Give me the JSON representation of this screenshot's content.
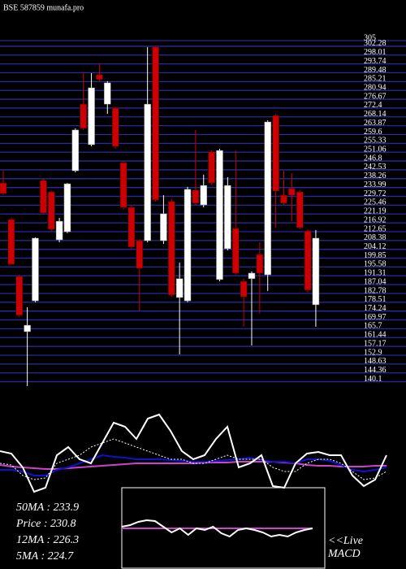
{
  "chart_data": [
    {
      "type": "candlestick",
      "title": "BSE 587859 munafa.pro",
      "ylim": [
        136,
        305
      ],
      "yticks": [
        305,
        302.28,
        298.01,
        293.74,
        289.48,
        285.21,
        280.94,
        276.67,
        272.4,
        268.14,
        263.87,
        259.6,
        255.33,
        251.06,
        246.8,
        242.53,
        238.26,
        233.99,
        229.72,
        225.46,
        221.19,
        216.92,
        212.65,
        208.38,
        204.12,
        199.85,
        195.58,
        191.31,
        187.04,
        182.78,
        178.51,
        174.24,
        169.97,
        165.7,
        161.44,
        157.17,
        152.9,
        148.63,
        144.36,
        140.1
      ],
      "grid": true,
      "grid_color": "#2a2aa0",
      "up_color": "#ffffff",
      "down_color": "#cc0000",
      "open": [
        236.2,
        218.5,
        191.0,
        164.3,
        179.2,
        237.4,
        231.9,
        208.7,
        212.6,
        242.1,
        274.3,
        254.7,
        288.5,
        274.3,
        272.4,
        246.0,
        224.4,
        208.3,
        208.3,
        301.9,
        208.3,
        227.2,
        180.8,
        179.2,
        232.7,
        225.6,
        251.2,
        189.5,
        204.4,
        214.2,
        188.6,
        189.9,
        201.6,
        191.8,
        268.8,
        230.3,
        233.5,
        231.9,
        213.0,
        177.3
      ],
      "high": [
        242.1,
        219.3,
        191.8,
        176.1,
        209.9,
        238.2,
        232.3,
        219.3,
        236.2,
        262.6,
        289.3,
        289.3,
        294.0,
        285.4,
        272.8,
        246.8,
        225.2,
        209.1,
        301.9,
        302.6,
        230.3,
        228.4,
        197.7,
        234.3,
        261.8,
        240.2,
        251.9,
        252.7,
        239.0,
        251.9,
        189.9,
        193.4,
        207.5,
        266.5,
        269.6,
        242.1,
        240.9,
        232.7,
        213.8,
        213.4
      ],
      "low": [
        230.3,
        196.9,
        171.4,
        138.0,
        178.5,
        220.9,
        213.0,
        207.5,
        211.9,
        241.3,
        261.8,
        253.9,
        285.4,
        269.6,
        252.7,
        223.3,
        204.4,
        174.5,
        207.5,
        227.2,
        206.7,
        181.2,
        153.3,
        178.5,
        225.6,
        224.4,
        235.4,
        188.6,
        203.6,
        191.8,
        166.7,
        157.6,
        173.0,
        184.0,
        214.6,
        225.6,
        217.7,
        213.8,
        183.2,
        166.7
      ],
      "close": [
        231.1,
        196.9,
        172.2,
        167.4,
        209.5,
        221.7,
        213.8,
        217.7,
        235.8,
        261.8,
        262.6,
        282.2,
        286.2,
        284.6,
        253.9,
        224.4,
        205.2,
        194.9,
        274.3,
        228.0,
        221.3,
        182.0,
        189.9,
        233.1,
        226.4,
        235.0,
        236.2,
        251.9,
        235.0,
        192.6,
        181.2,
        192.6,
        192.6,
        265.7,
        232.3,
        226.4,
        230.3,
        214.6,
        184.4,
        209.5
      ]
    },
    {
      "type": "line",
      "ylim": [
        0,
        120
      ],
      "annotations": [
        "50MA : 233.9",
        "Price   : 230.8",
        "12MA : 226.3",
        "5MA  : 224.7"
      ],
      "series": [
        {
          "color": "#cc44cc",
          "dash": false,
          "values": [
            38,
            36,
            35,
            34,
            33,
            33,
            34,
            35,
            36,
            37,
            38,
            39,
            40,
            40,
            40,
            40,
            40,
            40,
            41,
            41,
            41,
            42,
            42,
            42,
            42,
            41,
            40,
            38,
            37,
            37,
            36,
            36,
            36,
            37,
            37
          ]
        },
        {
          "color": "#1010d0",
          "dash": false,
          "values": [
            32,
            32,
            30,
            25,
            25,
            32,
            35,
            40,
            45,
            50,
            48,
            47,
            45,
            45,
            45,
            44,
            43,
            42,
            42,
            43,
            44,
            45,
            47,
            44,
            42,
            42,
            40,
            45,
            45,
            43,
            38,
            32,
            30,
            32,
            35
          ]
        },
        {
          "color": "#ffffff",
          "dash": true,
          "values": [
            40,
            38,
            25,
            20,
            22,
            40,
            45,
            50,
            60,
            65,
            70,
            65,
            60,
            55,
            50,
            45,
            45,
            40,
            40,
            45,
            50,
            45,
            45,
            45,
            35,
            30,
            30,
            40,
            45,
            45,
            40,
            30,
            20,
            22,
            30
          ]
        },
        {
          "color": "#ffffff",
          "dash": false,
          "values": [
            55,
            52,
            35,
            5,
            10,
            50,
            60,
            45,
            40,
            65,
            90,
            85,
            70,
            95,
            100,
            80,
            55,
            45,
            50,
            70,
            85,
            35,
            40,
            50,
            12,
            10,
            40,
            52,
            54,
            50,
            50,
            25,
            12,
            20,
            50
          ]
        }
      ]
    },
    {
      "type": "line",
      "title": "MACD",
      "annotations": [
        "<<Live"
      ],
      "ylim": [
        0,
        100
      ],
      "series": [
        {
          "color": "#cc44cc",
          "dash": false,
          "values": [
            50,
            50,
            50,
            50,
            50,
            50,
            50,
            50,
            50,
            50,
            50,
            50,
            50,
            50,
            50,
            50,
            50,
            50,
            50,
            50,
            50,
            50,
            50,
            50
          ]
        },
        {
          "color": "#ffffff",
          "dash": false,
          "values": [
            52,
            54,
            58,
            60,
            59,
            52,
            45,
            50,
            42,
            50,
            48,
            52,
            44,
            40,
            48,
            50,
            48,
            45,
            40,
            42,
            40,
            45,
            48,
            50
          ]
        }
      ]
    }
  ]
}
